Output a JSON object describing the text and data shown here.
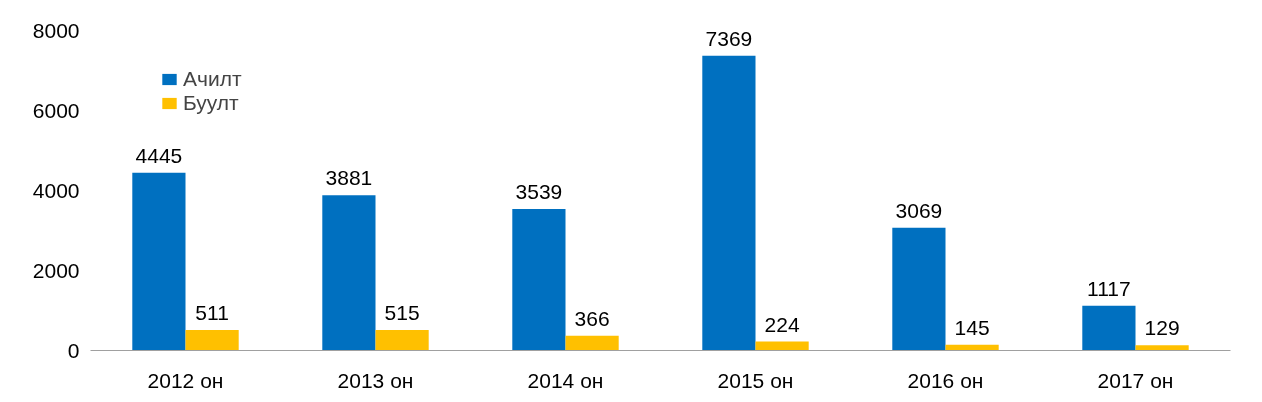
{
  "chart_data": {
    "type": "bar",
    "categories": [
      "2012 он",
      "2013 он",
      "2014 он",
      "2015 он",
      "2016 он",
      "2017 он"
    ],
    "series": [
      {
        "name": "Ачилт",
        "color": "#0070c0",
        "values": [
          4445,
          3881,
          3539,
          7369,
          3069,
          1117
        ]
      },
      {
        "name": "Буулт",
        "color": "#ffc000",
        "values": [
          511,
          515,
          366,
          224,
          145,
          129
        ]
      }
    ],
    "ylim": [
      0,
      8000
    ],
    "yticks": [
      0,
      2000,
      4000,
      6000,
      8000
    ],
    "grid": false,
    "legend": "top left",
    "data_labels": true
  }
}
